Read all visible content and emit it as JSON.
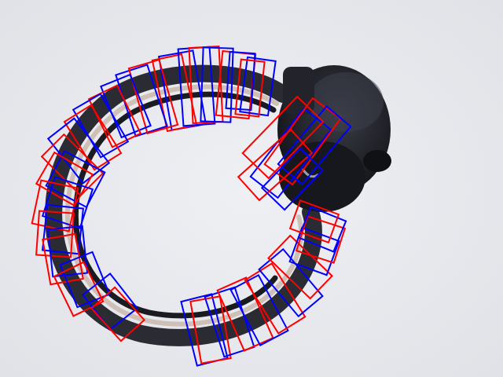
{
  "scene": {
    "subject": "headphones",
    "colors": {
      "background": "#e8eaee",
      "headband_outer": "#2b2c33",
      "headband_inner": "#1a1b20",
      "headband_highlight": "#c9b9ad",
      "earcup": "#1c1d23",
      "earcup_shade": "#3a3c46",
      "annotation_red": "#ff0000",
      "annotation_blue": "#0000ff"
    },
    "annotations": {
      "colors": [
        "red",
        "blue"
      ],
      "shape": "rotated-rectangle"
    }
  }
}
